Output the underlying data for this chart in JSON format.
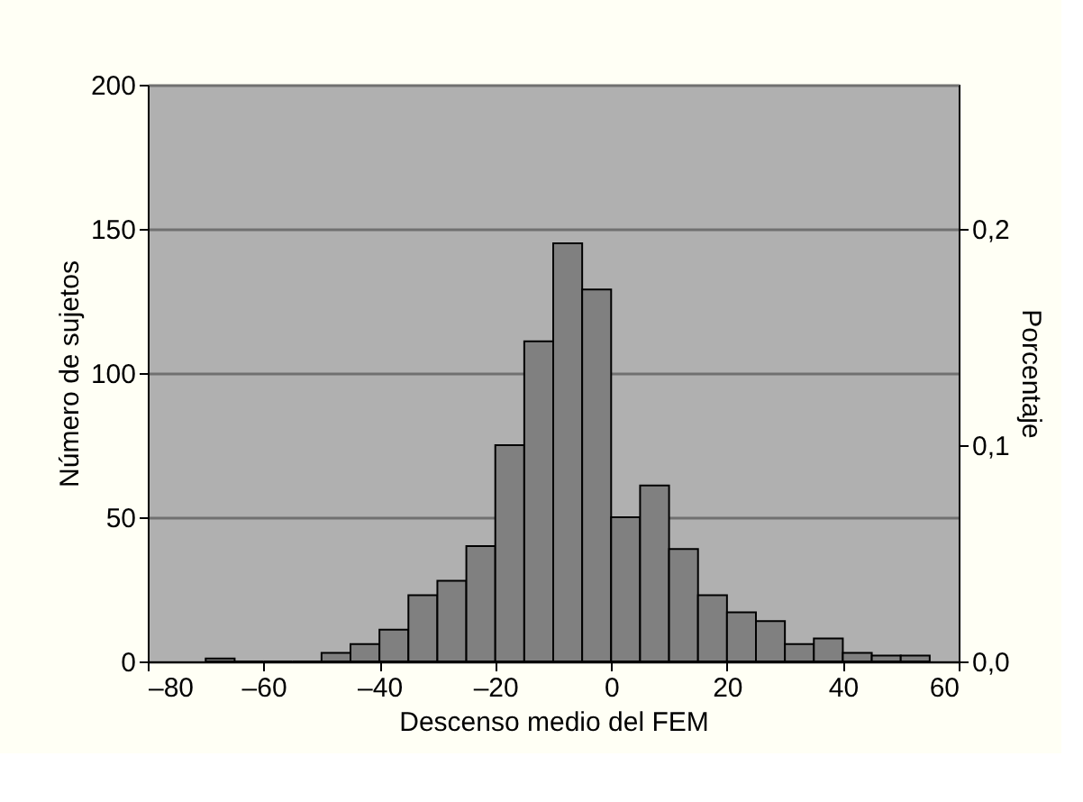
{
  "chart_data": {
    "type": "histogram",
    "xlabel": "Descenso medio del FEM",
    "ylabel": "Número de sujetos",
    "y2label": "Porcentaje",
    "bins": [
      -70,
      -65,
      -60,
      -55,
      -50,
      -45,
      -40,
      -35,
      -30,
      -25,
      -20,
      -15,
      -10,
      -5,
      0,
      5,
      10,
      15,
      20,
      25,
      30,
      35,
      40,
      45,
      50,
      55
    ],
    "values": [
      1,
      0,
      0,
      0,
      3,
      6,
      11,
      23,
      28,
      40,
      75,
      111,
      145,
      129,
      50,
      61,
      39,
      23,
      17,
      14,
      6,
      8,
      3,
      2,
      2
    ],
    "color": "#808080",
    "xlim": [
      -80,
      60
    ],
    "xticks": [
      {
        "value": -80,
        "label": "–80"
      },
      {
        "value": -60,
        "label": "–60"
      },
      {
        "value": -40,
        "label": "–40"
      },
      {
        "value": -20,
        "label": "–20"
      },
      0,
      20,
      40,
      60
    ],
    "ylim": [
      0,
      200
    ],
    "yticks": [
      0,
      50,
      100,
      150,
      200
    ],
    "y2lim": [
      0,
      0.2667
    ],
    "y2ticks": [
      {
        "value": 0,
        "label": "0,0"
      },
      {
        "value": 0.1,
        "label": "0,1"
      },
      {
        "value": 0.2,
        "label": "0,2"
      }
    ],
    "grid": "y",
    "legend": false
  }
}
